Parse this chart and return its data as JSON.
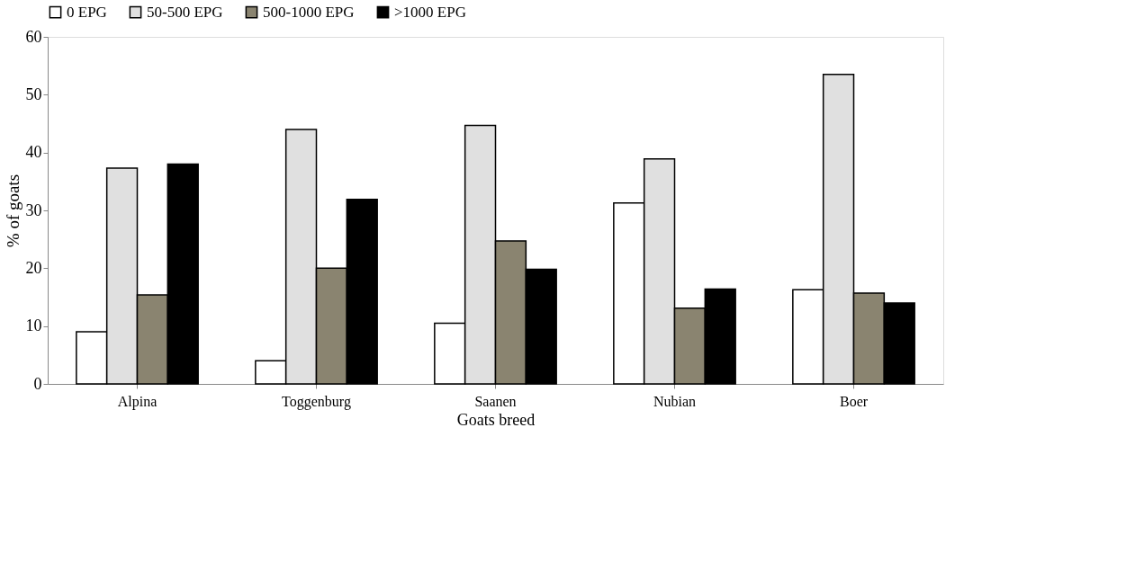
{
  "chart_data": {
    "type": "bar",
    "xlabel": "Goats breed",
    "ylabel": "% of goats",
    "categories": [
      "Alpina",
      "Toggenburg",
      "Saanen",
      "Nubian",
      "Boer"
    ],
    "series": [
      {
        "name": "0 EPG",
        "color": "#ffffff",
        "values": [
          9.0,
          4.0,
          10.5,
          31.3,
          16.3
        ]
      },
      {
        "name": "50-500 EPG",
        "color": "#e0e0e0",
        "values": [
          37.3,
          44.0,
          44.7,
          38.9,
          53.5
        ]
      },
      {
        "name": "500-1000 EPG",
        "color": "#8a8470",
        "values": [
          15.4,
          20.0,
          24.7,
          13.1,
          15.7
        ]
      },
      {
        "name": ">1000 EPG",
        "color": "#000000",
        "values": [
          38.0,
          31.9,
          19.8,
          16.4,
          14.0
        ]
      }
    ],
    "ylim": [
      0,
      60
    ],
    "yticks": [
      0,
      10,
      20,
      30,
      40,
      50,
      60
    ],
    "grid": false,
    "legend": "top"
  }
}
